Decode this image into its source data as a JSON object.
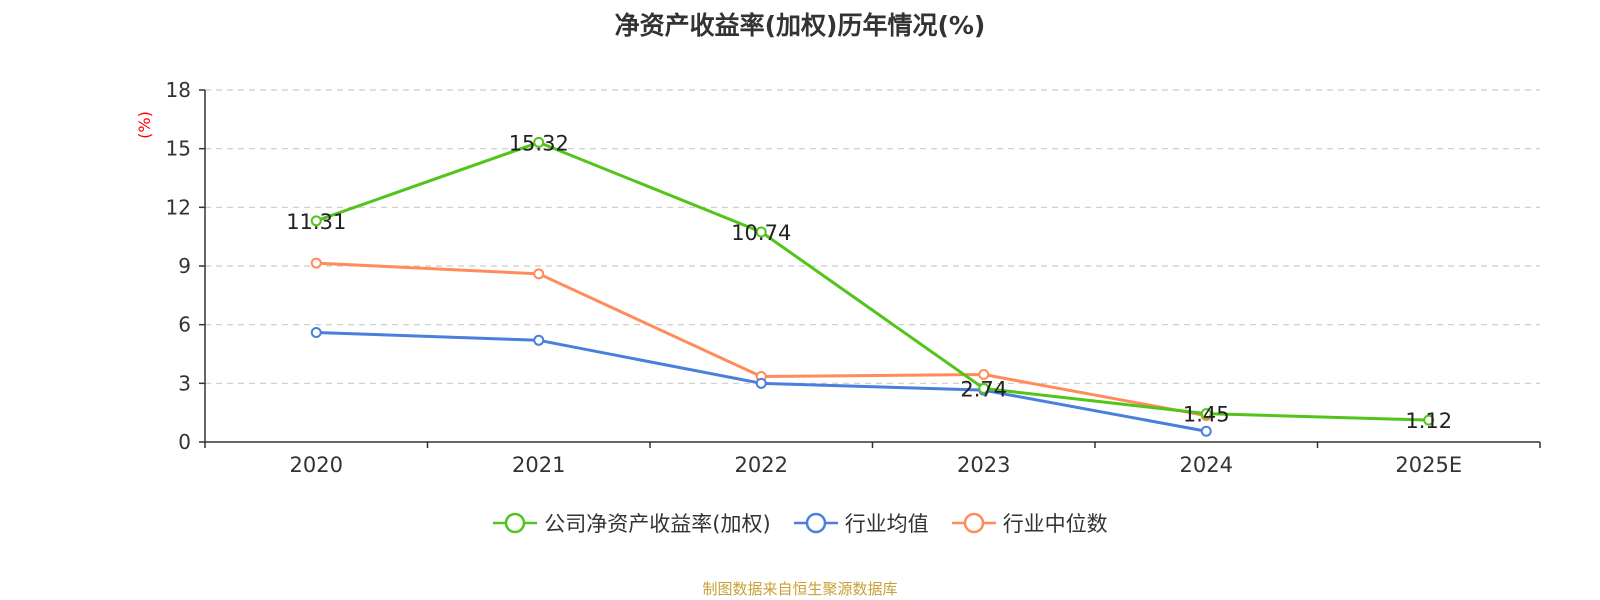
{
  "chart_data": {
    "type": "line",
    "title": "净资产收益率(加权)历年情况(%)",
    "ylabel": "(%)",
    "xlabel": "",
    "categories": [
      "2020",
      "2021",
      "2022",
      "2023",
      "2024",
      "2025E"
    ],
    "ylim": [
      0,
      18
    ],
    "yticks": [
      0,
      3,
      6,
      9,
      12,
      15,
      18
    ],
    "grid": true,
    "legend_position": "bottom-center",
    "series": [
      {
        "name": "公司净资产收益率(加权)",
        "color": "#52c41a",
        "values": [
          11.31,
          15.32,
          10.74,
          2.74,
          1.45,
          1.12
        ],
        "labels": [
          "11.31",
          "15.32",
          "10.74",
          "2.74",
          "1.45",
          "1.12"
        ]
      },
      {
        "name": "行业均值",
        "color": "#4a7fdc",
        "values": [
          5.6,
          5.2,
          3.0,
          2.65,
          0.55,
          null
        ]
      },
      {
        "name": "行业中位数",
        "color": "#ff8c5a",
        "values": [
          9.15,
          8.6,
          3.35,
          3.45,
          1.35,
          null
        ]
      }
    ]
  },
  "source_note": "制图数据来自恒生聚源数据库",
  "colors": {
    "axis": "#333333",
    "grid": "#cccccc",
    "ylabel": "#ff0000",
    "source": "#c8a035"
  }
}
